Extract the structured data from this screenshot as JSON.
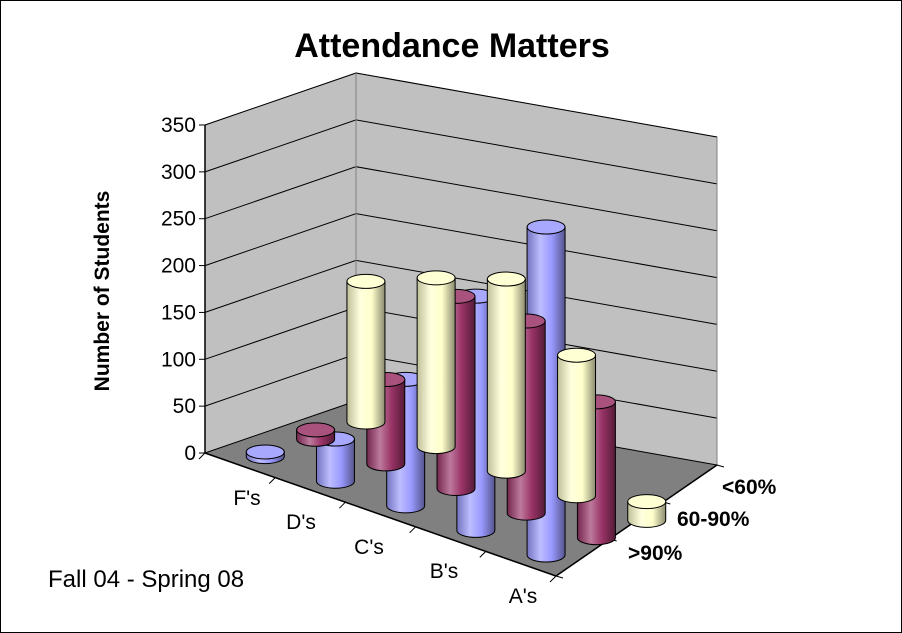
{
  "chart_data": {
    "type": "bar",
    "style": "3d-cylinder",
    "title": "Attendance Matters",
    "ylabel": "Number of Students",
    "xlabel": "",
    "ylim": [
      0,
      350
    ],
    "yticks": [
      "0",
      "50",
      "100",
      "150",
      "200",
      "250",
      "300",
      "350"
    ],
    "categories": [
      "F's",
      "D's",
      "C's",
      "B's",
      "A's"
    ],
    "series": [
      {
        "name": "<60%",
        "color": "#FFFFCC",
        "values": [
          150,
          180,
          205,
          150,
          20
        ]
      },
      {
        "name": "60-90%",
        "color": "#993366",
        "values": [
          10,
          90,
          205,
          205,
          145
        ]
      },
      {
        "name": ">90%",
        "color": "#9999FF",
        "values": [
          5,
          45,
          135,
          250,
          350
        ]
      }
    ],
    "grid": true,
    "wall_color": "#C0C0C0",
    "floor_color": "#808080",
    "annotation": "Fall 04 - Spring 08"
  }
}
